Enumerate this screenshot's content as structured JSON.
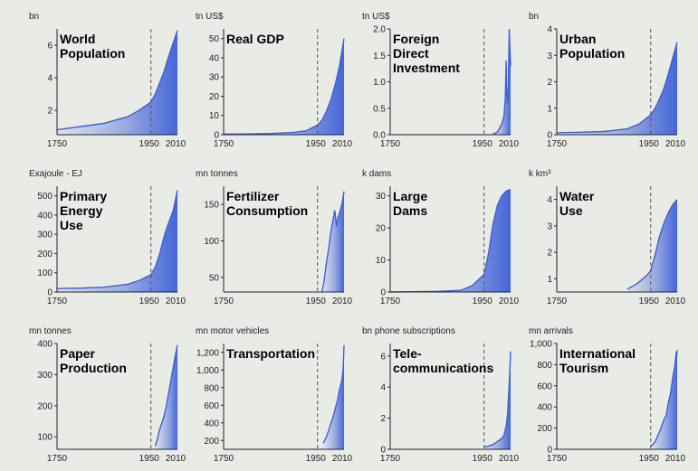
{
  "chart_data": [
    {
      "id": "world-population",
      "type": "area",
      "title": [
        "World",
        "Population"
      ],
      "unit": "bn",
      "x_ticks": [
        "1750",
        "1950",
        "2010"
      ],
      "ref_year": 1950,
      "ylim": [
        0.5,
        7
      ],
      "y_ticks": [
        2,
        4,
        6
      ],
      "y_tick_labels": [
        "2",
        "4",
        "6"
      ],
      "x": [
        1750,
        1800,
        1850,
        1900,
        1925,
        1950,
        1960,
        1970,
        1980,
        1990,
        2000,
        2010
      ],
      "values": [
        0.8,
        1.0,
        1.2,
        1.6,
        2.0,
        2.5,
        3.0,
        3.7,
        4.4,
        5.3,
        6.1,
        6.9
      ]
    },
    {
      "id": "real-gdp",
      "type": "area",
      "title": [
        "Real GDP"
      ],
      "unit": "tn US$",
      "x_ticks": [
        "1750",
        "1950",
        "2010"
      ],
      "ref_year": 1950,
      "ylim": [
        0,
        55
      ],
      "y_ticks": [
        0,
        10,
        20,
        30,
        40,
        50
      ],
      "y_tick_labels": [
        "0",
        "10",
        "20",
        "30",
        "40",
        "50"
      ],
      "x": [
        1750,
        1800,
        1850,
        1900,
        1925,
        1950,
        1960,
        1970,
        1980,
        1990,
        2000,
        2010
      ],
      "values": [
        0.3,
        0.4,
        0.6,
        1.2,
        2.0,
        5.0,
        7.5,
        12.0,
        18.0,
        26.0,
        36.0,
        50.0
      ]
    },
    {
      "id": "foreign-direct-investment",
      "type": "area",
      "title": [
        "Foreign",
        "Direct",
        "Investment"
      ],
      "unit": "tn US$",
      "x_ticks": [
        "1750",
        "1950",
        "2010"
      ],
      "ref_year": 1950,
      "ylim": [
        0,
        2.0
      ],
      "y_ticks": [
        0,
        0.5,
        1.0,
        1.5,
        2.0
      ],
      "y_tick_labels": [
        "0.0",
        "0.5",
        "1.0",
        "1.5",
        "2.0"
      ],
      "x": [
        1970,
        1980,
        1990,
        1995,
        1998,
        2000,
        2001,
        2003,
        2005,
        2007,
        2008,
        2010
      ],
      "values": [
        0.01,
        0.05,
        0.2,
        0.35,
        0.7,
        1.4,
        0.8,
        0.6,
        1.0,
        2.0,
        1.7,
        1.3
      ]
    },
    {
      "id": "urban-population",
      "type": "area",
      "title": [
        "Urban",
        "Population"
      ],
      "unit": "bn",
      "x_ticks": [
        "1750",
        "1950",
        "2010"
      ],
      "ref_year": 1950,
      "ylim": [
        0,
        4
      ],
      "y_ticks": [
        0,
        1,
        2,
        3,
        4
      ],
      "y_tick_labels": [
        "0",
        "1",
        "2",
        "3",
        "4"
      ],
      "x": [
        1750,
        1800,
        1850,
        1900,
        1925,
        1950,
        1960,
        1970,
        1980,
        1990,
        2000,
        2010
      ],
      "values": [
        0.07,
        0.09,
        0.12,
        0.22,
        0.4,
        0.75,
        1.0,
        1.35,
        1.75,
        2.3,
        2.9,
        3.5
      ]
    },
    {
      "id": "primary-energy-use",
      "type": "area",
      "title": [
        "Primary",
        "Energy",
        "Use"
      ],
      "unit": "Exajoule - EJ",
      "x_ticks": [
        "1750",
        "1950",
        "2010"
      ],
      "ref_year": 1950,
      "ylim": [
        0,
        550
      ],
      "y_ticks": [
        0,
        100,
        200,
        300,
        400,
        500
      ],
      "y_tick_labels": [
        "0",
        "100",
        "200",
        "300",
        "400",
        "500"
      ],
      "x": [
        1750,
        1800,
        1850,
        1900,
        1925,
        1950,
        1960,
        1970,
        1980,
        1990,
        2000,
        2010
      ],
      "values": [
        18,
        20,
        25,
        40,
        60,
        90,
        130,
        200,
        290,
        360,
        420,
        530
      ]
    },
    {
      "id": "fertilizer-consumption",
      "type": "area",
      "title": [
        "Fertilizer",
        "Consumption"
      ],
      "unit": "mn tonnes",
      "x_ticks": [
        "1750",
        "1950",
        "2010"
      ],
      "ref_year": 1950,
      "ylim": [
        30,
        175
      ],
      "y_ticks": [
        50,
        100,
        150
      ],
      "y_tick_labels": [
        "50",
        "100",
        "150"
      ],
      "x": [
        1960,
        1965,
        1970,
        1975,
        1980,
        1985,
        1989,
        1993,
        1996,
        2000,
        2005,
        2008,
        2010
      ],
      "values": [
        30,
        45,
        70,
        88,
        112,
        128,
        142,
        120,
        132,
        138,
        150,
        160,
        168
      ]
    },
    {
      "id": "large-dams",
      "type": "area",
      "title": [
        "Large",
        "Dams"
      ],
      "unit": "k dams",
      "x_ticks": [
        "1750",
        "1950",
        "2010"
      ],
      "ref_year": 1950,
      "ylim": [
        0,
        33
      ],
      "y_ticks": [
        0,
        10,
        20,
        30
      ],
      "y_tick_labels": [
        "0",
        "10",
        "20",
        "30"
      ],
      "x": [
        1750,
        1800,
        1850,
        1900,
        1925,
        1950,
        1960,
        1970,
        1980,
        1990,
        2000,
        2010
      ],
      "values": [
        0.0,
        0.1,
        0.2,
        0.5,
        2.0,
        5.5,
        12.0,
        21.0,
        27.0,
        30.0,
        31.5,
        32.0
      ]
    },
    {
      "id": "water-use",
      "type": "area",
      "title": [
        "Water",
        "Use"
      ],
      "unit": "k km³",
      "x_ticks": [
        "1750",
        "1950",
        "2010"
      ],
      "ref_year": 1950,
      "ylim": [
        0.5,
        4.5
      ],
      "y_ticks": [
        1,
        2,
        3,
        4
      ],
      "y_tick_labels": [
        "1",
        "2",
        "3",
        "4"
      ],
      "x": [
        1900,
        1910,
        1920,
        1930,
        1940,
        1950,
        1960,
        1970,
        1980,
        1990,
        2000,
        2010
      ],
      "values": [
        0.6,
        0.7,
        0.8,
        0.95,
        1.1,
        1.3,
        1.9,
        2.6,
        3.1,
        3.5,
        3.8,
        4.0
      ]
    },
    {
      "id": "paper-production",
      "type": "area",
      "title": [
        "Paper",
        "Production"
      ],
      "unit": "mn tonnes",
      "x_ticks": [
        "1750",
        "1950",
        "2010"
      ],
      "ref_year": 1950,
      "ylim": [
        60,
        400
      ],
      "y_ticks": [
        100,
        200,
        300,
        400
      ],
      "y_tick_labels": [
        "100",
        "200",
        "300",
        "400"
      ],
      "x": [
        1960,
        1965,
        1970,
        1975,
        1980,
        1985,
        1990,
        1995,
        2000,
        2005,
        2010
      ],
      "values": [
        70,
        95,
        125,
        145,
        170,
        200,
        240,
        280,
        320,
        360,
        395
      ]
    },
    {
      "id": "transportation",
      "type": "area",
      "title": [
        "Transportation"
      ],
      "unit": "mn motor vehicles",
      "x_ticks": [
        "1750",
        "1950",
        "2010"
      ],
      "ref_year": 1950,
      "ylim": [
        100,
        1300
      ],
      "y_ticks": [
        200,
        400,
        600,
        800,
        1000,
        1200
      ],
      "y_tick_labels": [
        "200",
        "400",
        "600",
        "800",
        "1,000",
        "1,200"
      ],
      "x": [
        1963,
        1970,
        1975,
        1980,
        1985,
        1990,
        1995,
        2000,
        2005,
        2008,
        2010
      ],
      "values": [
        170,
        240,
        310,
        390,
        460,
        560,
        650,
        780,
        880,
        1000,
        1280
      ]
    },
    {
      "id": "telecommunications",
      "type": "area",
      "title": [
        "Tele-",
        "communications"
      ],
      "unit": "bn phone subscriptions",
      "x_ticks": [
        "1750",
        "1950",
        "2010"
      ],
      "ref_year": 1950,
      "ylim": [
        0,
        6.8
      ],
      "y_ticks": [
        0,
        2,
        4,
        6
      ],
      "y_tick_labels": [
        "0",
        "2",
        "4",
        "6"
      ],
      "x": [
        1950,
        1960,
        1970,
        1980,
        1990,
        1995,
        2000,
        2003,
        2005,
        2008,
        2010
      ],
      "values": [
        0.15,
        0.2,
        0.3,
        0.5,
        0.7,
        0.9,
        1.5,
        2.2,
        3.2,
        4.8,
        6.3
      ]
    },
    {
      "id": "international-tourism",
      "type": "area",
      "title": [
        "International",
        "Tourism"
      ],
      "unit": "mn arrivals",
      "x_ticks": [
        "1750",
        "1950",
        "2010"
      ],
      "ref_year": 1950,
      "ylim": [
        0,
        1000
      ],
      "y_ticks": [
        0,
        200,
        400,
        600,
        800,
        1000
      ],
      "y_tick_labels": [
        "0",
        "200",
        "400",
        "600",
        "800",
        "1,000"
      ],
      "x": [
        1950,
        1960,
        1970,
        1975,
        1980,
        1985,
        1990,
        1995,
        2000,
        2005,
        2008,
        2009,
        2010
      ],
      "values": [
        25,
        70,
        165,
        220,
        280,
        320,
        440,
        530,
        680,
        800,
        920,
        880,
        940
      ]
    }
  ],
  "colors": {
    "fill": "#3d5fd8",
    "line": "#3d5fd8",
    "background": "#e9ebe6"
  }
}
